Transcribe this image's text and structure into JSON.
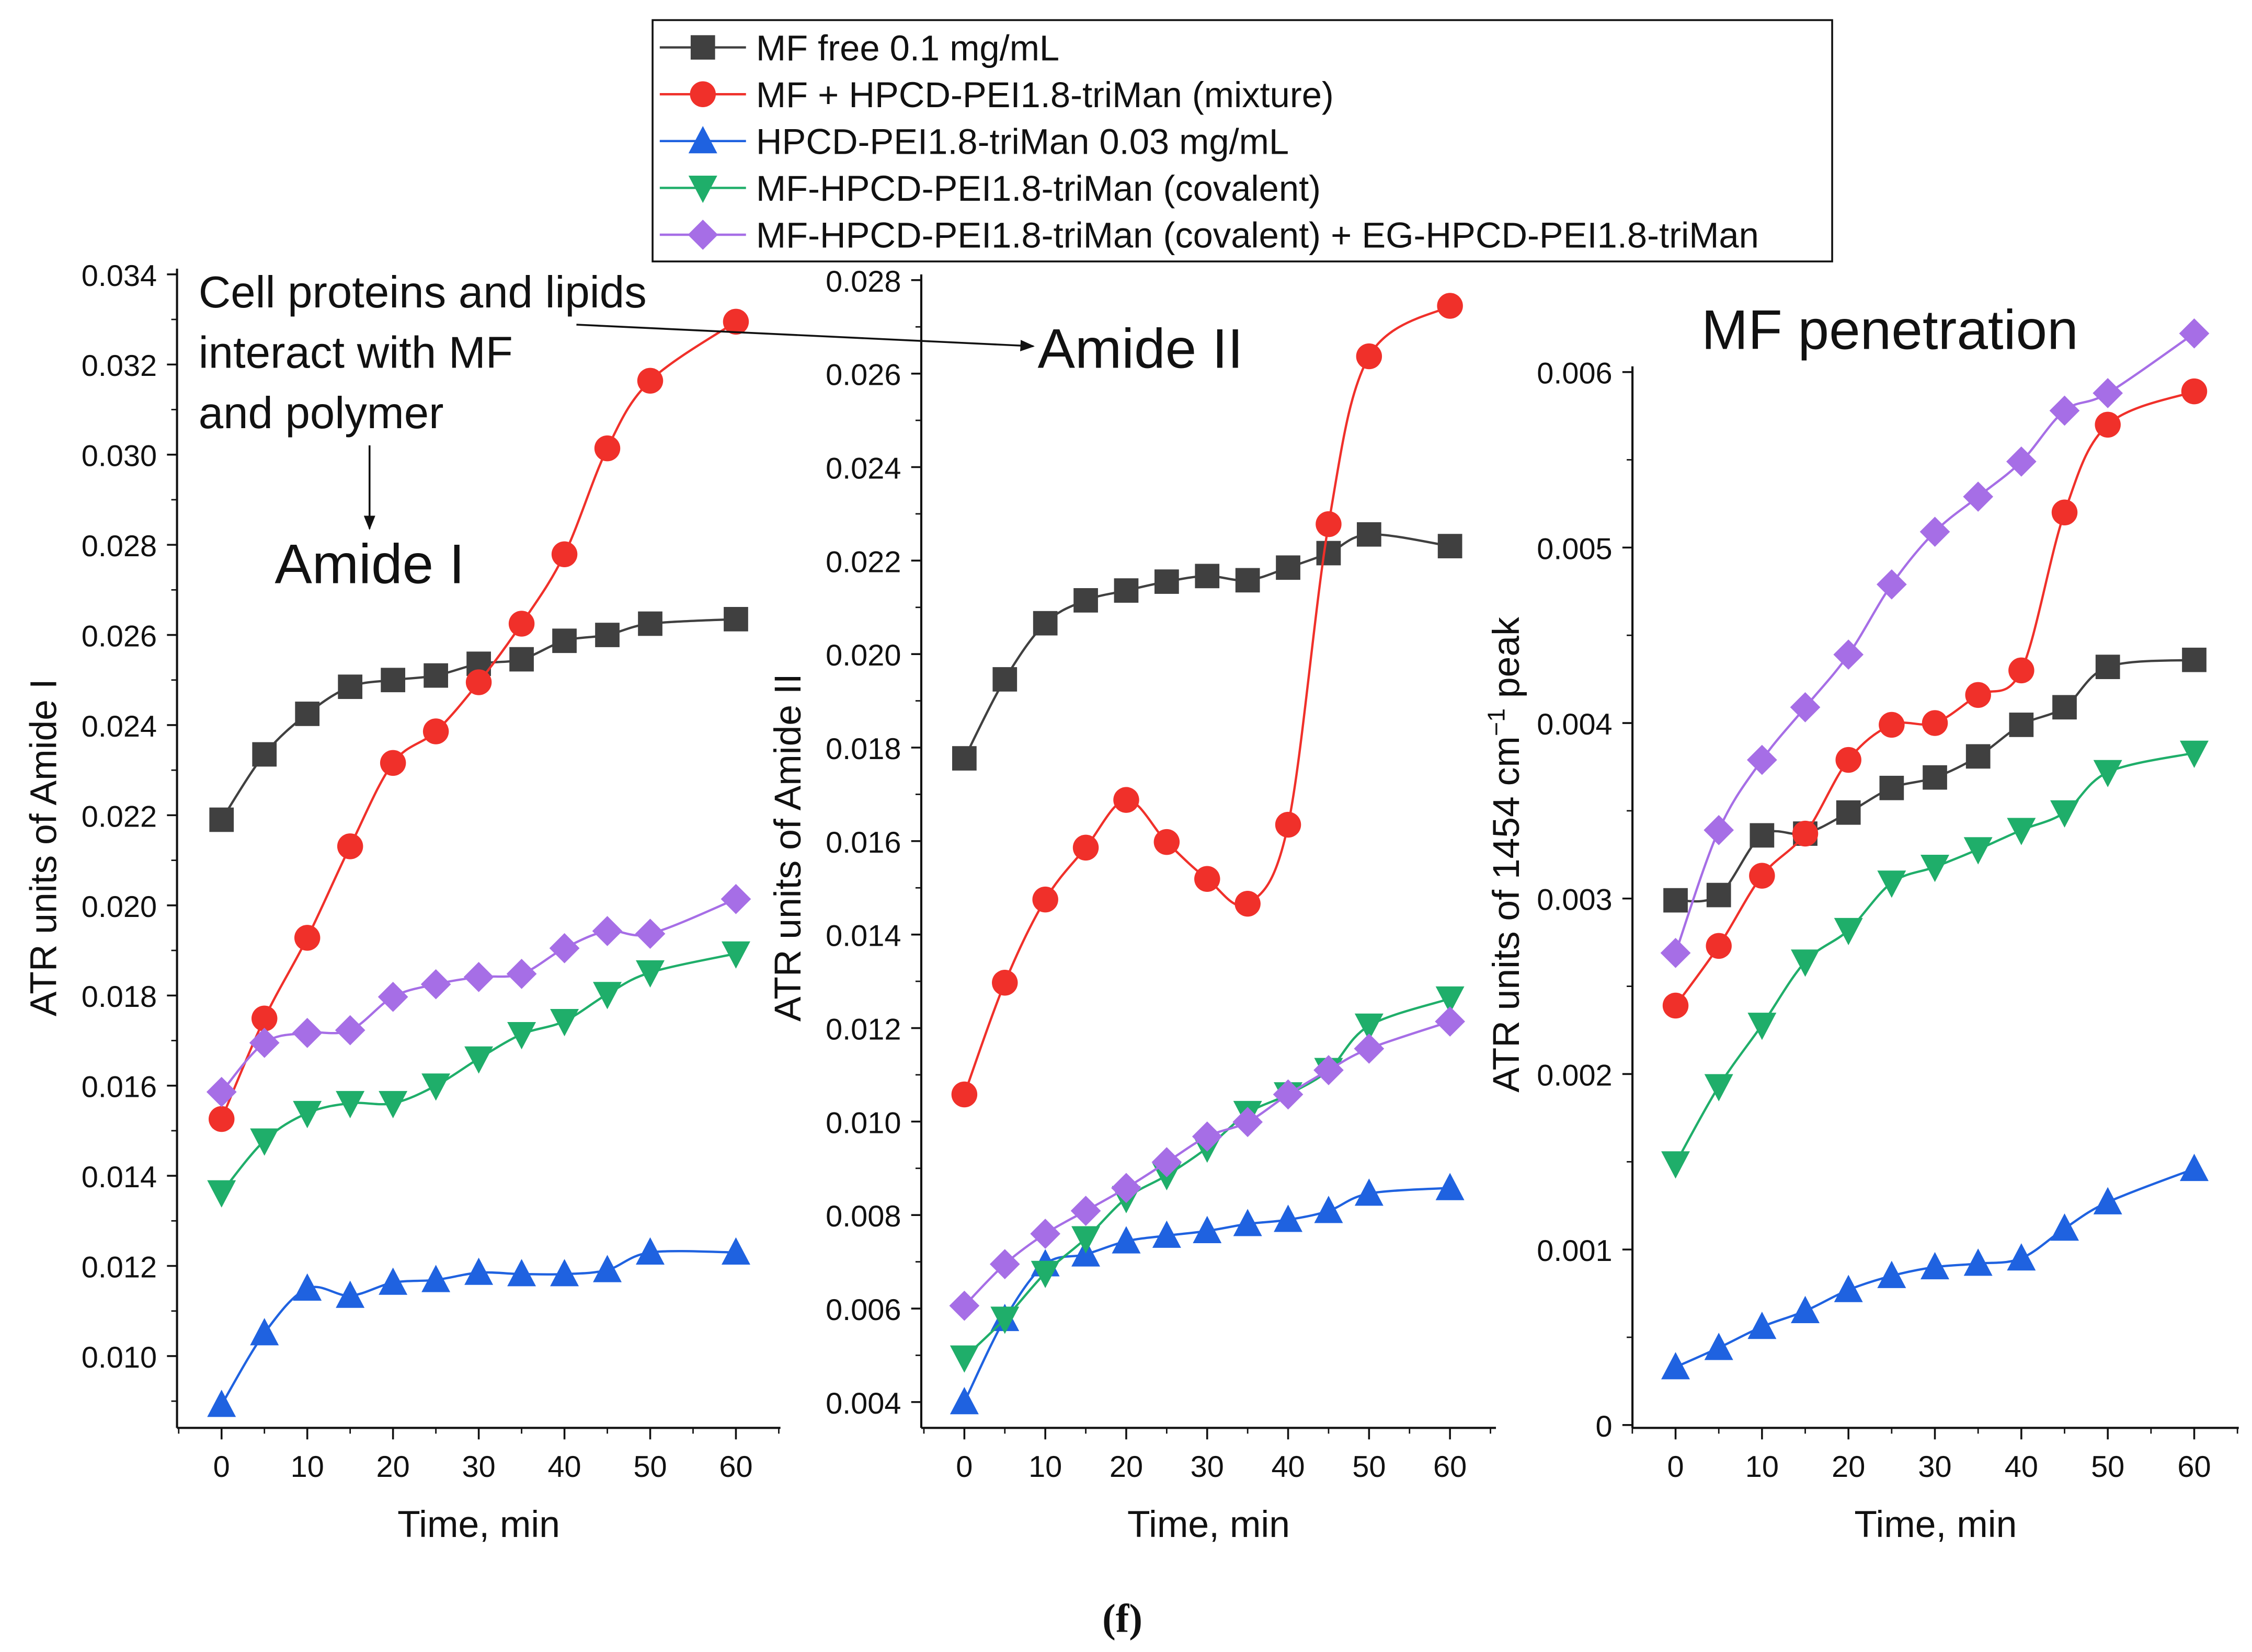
{
  "figure_label": "(f)",
  "legend": [
    {
      "name": "MF free 0.1 mg/mL",
      "color": "#404040",
      "marker": "square"
    },
    {
      "name": "MF + HPCD-PEI1.8-triMan (mixture)",
      "color": "#f0302a",
      "marker": "circle"
    },
    {
      "name": "HPCD-PEI1.8-triMan 0.03 mg/mL",
      "color": "#1f62e0",
      "marker": "triangle-up"
    },
    {
      "name": "MF-HPCD-PEI1.8-triMan (covalent)",
      "color": "#1fae6a",
      "marker": "triangle-down"
    },
    {
      "name": "MF-HPCD-PEI1.8-triMan (covalent) + EG-HPCD-PEI1.8-triMan",
      "color": "#a66ee6",
      "marker": "diamond"
    }
  ],
  "annotations": {
    "cell_text": [
      "Cell proteins and lipids",
      "interact with MF",
      "and polymer"
    ],
    "amide1": "Amide I",
    "amide2": "Amide II",
    "mf_penetration": "MF penetration"
  },
  "chart_data": [
    {
      "type": "line",
      "title": "Amide I",
      "xlabel": "Time, min",
      "ylabel": "ATR units of Amide I",
      "xlim": [
        -5,
        65
      ],
      "ylim": [
        0.0088,
        0.034
      ],
      "xticks": [
        0,
        10,
        20,
        30,
        40,
        50,
        60
      ],
      "yticks": [
        "0.010",
        "0.012",
        "0.014",
        "0.016",
        "0.018",
        "0.020",
        "0.022",
        "0.024",
        "0.026",
        "0.028",
        "0.030",
        "0.032",
        "0.034"
      ],
      "x": [
        0,
        5,
        10,
        15,
        20,
        25,
        30,
        35,
        40,
        45,
        50,
        60
      ],
      "series": [
        {
          "name": "MF free 0.1 mg/mL",
          "values": [
            0.0219,
            0.02335,
            0.02425,
            0.02485,
            0.025,
            0.0251,
            0.02536,
            0.02546,
            0.02587,
            0.026,
            0.02625,
            0.02635
          ]
        },
        {
          "name": "MF + HPCD-PEI1.8-triMan (mixture)",
          "values": [
            0.01526,
            0.01749,
            0.01928,
            0.02131,
            0.02316,
            0.02386,
            0.02495,
            0.02625,
            0.02779,
            0.03014,
            0.03164,
            0.03295
          ]
        },
        {
          "name": "HPCD-PEI1.8-triMan 0.03 mg/mL",
          "values": [
            0.00892,
            0.01051,
            0.0115,
            0.01134,
            0.01163,
            0.01169,
            0.01185,
            0.01182,
            0.01182,
            0.01191,
            0.0123,
            0.0123
          ]
        },
        {
          "name": "MF-HPCD-PEI1.8-triMan (covalent)",
          "values": [
            0.01363,
            0.01478,
            0.01539,
            0.01561,
            0.01561,
            0.016,
            0.0166,
            0.01714,
            0.01743,
            0.01803,
            0.01851,
            0.01893
          ]
        },
        {
          "name": "MF-HPCD-PEI1.8-triMan (covalent) + EG-HPCD-PEI1.8-triMan",
          "values": [
            0.01586,
            0.01695,
            0.01717,
            0.01723,
            0.01797,
            0.01825,
            0.01841,
            0.01848,
            0.01905,
            0.01943,
            0.01937,
            0.02014
          ]
        }
      ]
    },
    {
      "type": "line",
      "title": "Amide II",
      "xlabel": "Time, min",
      "ylabel": "ATR units of Amide II",
      "xlim": [
        -5,
        65
      ],
      "ylim": [
        0.0035,
        0.028
      ],
      "xticks": [
        0,
        10,
        20,
        30,
        40,
        50,
        60
      ],
      "yticks": [
        "0.004",
        "0.006",
        "0.008",
        "0.010",
        "0.012",
        "0.014",
        "0.016",
        "0.018",
        "0.020",
        "0.022",
        "0.024",
        "0.026",
        "0.028"
      ],
      "x": [
        0,
        5,
        10,
        15,
        20,
        25,
        30,
        35,
        40,
        45,
        50,
        60
      ],
      "series": [
        {
          "name": "MF free 0.1 mg/mL",
          "values": [
            0.01777,
            0.01946,
            0.02066,
            0.02115,
            0.02136,
            0.02155,
            0.02167,
            0.02158,
            0.02185,
            0.02216,
            0.02256,
            0.02231
          ]
        },
        {
          "name": "MF + HPCD-PEI1.8-triMan (mixture)",
          "values": [
            0.01058,
            0.01297,
            0.01475,
            0.01586,
            0.01688,
            0.01598,
            0.01519,
            0.01466,
            0.01635,
            0.02278,
            0.02637,
            0.02745
          ]
        },
        {
          "name": "HPCD-PEI1.8-triMan 0.03 mg/mL",
          "values": [
            0.004,
            0.00578,
            0.00695,
            0.00716,
            0.00744,
            0.00756,
            0.00766,
            0.00781,
            0.0079,
            0.00809,
            0.00846,
            0.00858
          ]
        },
        {
          "name": "MF-HPCD-PEI1.8-triMan (covalent)",
          "values": [
            0.00495,
            0.00578,
            0.00676,
            0.0075,
            0.00836,
            0.00885,
            0.00944,
            0.01018,
            0.01058,
            0.0111,
            0.01205,
            0.01263
          ]
        },
        {
          "name": "MF-HPCD-PEI1.8-triMan (covalent) + EG-HPCD-PEI1.8-triMan",
          "values": [
            0.00606,
            0.00695,
            0.0076,
            0.00809,
            0.00858,
            0.00913,
            0.00968,
            0.00999,
            0.01058,
            0.0111,
            0.01156,
            0.01214
          ]
        }
      ]
    },
    {
      "type": "line",
      "title": "MF penetration",
      "xlabel": "Time, min",
      "ylabel": "ATR units of 1454 cm",
      "ylabel_sup": "−1",
      "ylabel_end": " peak",
      "xlim": [
        -5,
        65
      ],
      "ylim": [
        0,
        0.006
      ],
      "xticks": [
        0,
        10,
        20,
        30,
        40,
        50,
        60
      ],
      "yticks": [
        "0",
        "0.001",
        "0.002",
        "0.003",
        "0.004",
        "0.005",
        "0.006"
      ],
      "x": [
        0,
        5,
        10,
        15,
        20,
        25,
        30,
        35,
        40,
        45,
        50,
        60
      ],
      "series": [
        {
          "name": "MF free 0.1 mg/mL",
          "values": [
            0.00299,
            0.00302,
            0.00336,
            0.00337,
            0.00349,
            0.00363,
            0.00369,
            0.00381,
            0.00399,
            0.00409,
            0.00432,
            0.00436
          ]
        },
        {
          "name": "MF + HPCD-PEI1.8-triMan (mixture)",
          "values": [
            0.00239,
            0.00273,
            0.00313,
            0.00337,
            0.00379,
            0.00399,
            0.004,
            0.00416,
            0.0043,
            0.0052,
            0.0057,
            0.00589
          ]
        },
        {
          "name": "HPCD-PEI1.8-triMan 0.03 mg/mL",
          "values": [
            0.00033,
            0.00044,
            0.00056,
            0.00065,
            0.00077,
            0.00085,
            0.0009,
            0.00092,
            0.00095,
            0.00112,
            0.00127,
            0.00146
          ]
        },
        {
          "name": "MF-HPCD-PEI1.8-triMan (covalent)",
          "values": [
            0.00149,
            0.00193,
            0.00228,
            0.00264,
            0.00282,
            0.00309,
            0.00318,
            0.00328,
            0.00339,
            0.00349,
            0.00372,
            0.00383
          ]
        },
        {
          "name": "MF-HPCD-PEI1.8-triMan (covalent) + EG-HPCD-PEI1.8-triMan",
          "values": [
            0.00269,
            0.00339,
            0.00379,
            0.00409,
            0.00439,
            0.00479,
            0.00509,
            0.00529,
            0.00549,
            0.00578,
            0.00588,
            0.00622
          ]
        }
      ]
    }
  ]
}
